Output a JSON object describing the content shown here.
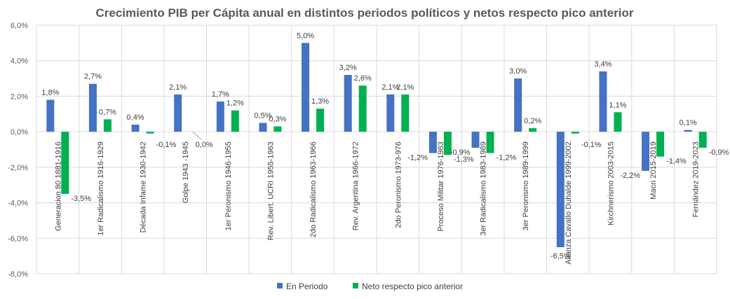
{
  "chart_data": {
    "type": "bar",
    "title": "Crecimiento PIB per Cápita anual en distintos periodos políticos y netos respecto pico anterior",
    "categories": [
      "Generacion 80 1881-1916",
      "1er Radicalismo 1916-1929",
      "Década Infame 1930-1942",
      "Golpe 1943 -1945",
      "1er Peronismo 1946-1955",
      "Rev. Libert. UCRI 1955-1963",
      "2do Radicalismo 1963-1966",
      "Rev. Argentina 1966-1972",
      "2do Peronismo 1973-976",
      "Proceso Militar 1976-1983",
      "3er Radicalismo 1983-1989",
      "3er Peronismo 1989-1999",
      "Alianza Cavallo Duhalde 1999-2002",
      "Kirchnerismo 2003-2015",
      "Macri 2015-2019",
      "Fernández 2019-2023"
    ],
    "series": [
      {
        "name": "En Periodo",
        "color": "#4472C4",
        "values": [
          1.8,
          2.7,
          0.4,
          2.1,
          1.7,
          0.5,
          5.0,
          3.2,
          2.1,
          -1.2,
          -0.9,
          3.0,
          -6.5,
          3.4,
          -2.2,
          0.1
        ],
        "labels": [
          "1,8%",
          "2,7%",
          "0,4%",
          "2,1%",
          "1,7%",
          "0,5%",
          "5,0%",
          "3,2%",
          "2,1%",
          "-1,2%",
          "-0,9%",
          "3,0%",
          "-6,5%",
          "3,4%",
          "-2,2%",
          "0,1%"
        ]
      },
      {
        "name": "Neto respecto pico anterior",
        "color": "#00B050",
        "values": [
          -3.5,
          0.7,
          -0.1,
          0.0,
          1.2,
          0.3,
          1.3,
          2.6,
          2.1,
          -1.3,
          -1.2,
          0.2,
          -0.1,
          1.1,
          -1.4,
          -0.9
        ],
        "labels": [
          "-3,5%",
          "0,7%",
          "-0,1%",
          "0,0%",
          "1,2%",
          "0,3%",
          "1,3%",
          "2,6%",
          "2,1%",
          "-1,3%",
          "-1,2%",
          "0,2%",
          "-0,1%",
          "1,1%",
          "-1,4%",
          "-0,9%"
        ]
      }
    ],
    "ylim": [
      -8,
      6
    ],
    "yticks": [
      "-8,0%",
      "-6,0%",
      "-4,0%",
      "-2,0%",
      "0,0%",
      "2,0%",
      "4,0%",
      "6,0%"
    ],
    "ytick_values": [
      -8,
      -6,
      -4,
      -2,
      0,
      2,
      4,
      6
    ],
    "grid": true,
    "legend_position": "bottom"
  }
}
